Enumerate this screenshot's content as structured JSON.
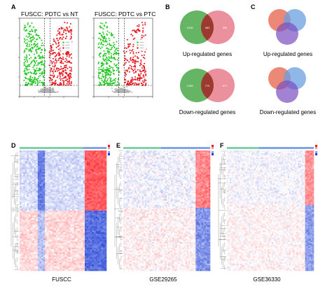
{
  "panels": {
    "A": {
      "label": "A",
      "plots": [
        {
          "title": "FUSCC: PDTC vs NT"
        },
        {
          "title": "FUSCC: PDTC vs PTC"
        }
      ]
    },
    "B": {
      "label": "B",
      "venns": [
        {
          "caption": "Up-regulated genes",
          "left_value": "1026",
          "mid_value": "483",
          "right_value": "395"
        },
        {
          "caption": "Down-regulated genes",
          "left_value": "1098",
          "mid_value": "775",
          "right_value": "677"
        }
      ]
    },
    "C": {
      "label": "C",
      "venns": [
        {
          "caption": "Up-regulated genes"
        },
        {
          "caption": "Down-regulated genes"
        }
      ]
    },
    "D": {
      "label": "D",
      "caption": "FUSCC"
    },
    "E": {
      "label": "E",
      "caption": "GSE29265"
    },
    "F": {
      "label": "F",
      "caption": "GSE36330"
    }
  },
  "colors": {
    "volcano_up": "#e8101a",
    "volcano_down": "#22c722",
    "volcano_ns": "#b0b0b0",
    "venn_left": "#4aa84a",
    "venn_right": "#e46b7c",
    "venn_overlap": "#9c3a2f",
    "venn3_a": "#e8735e",
    "venn3_b": "#6a9fe0",
    "venn3_c": "#7a4fc0",
    "heat_high": "#e0232a",
    "heat_low": "#1f3fd6",
    "heat_mid": "#ffffff",
    "bar_group1": "#7fd1a7",
    "bar_group2": "#7fa4e8"
  }
}
